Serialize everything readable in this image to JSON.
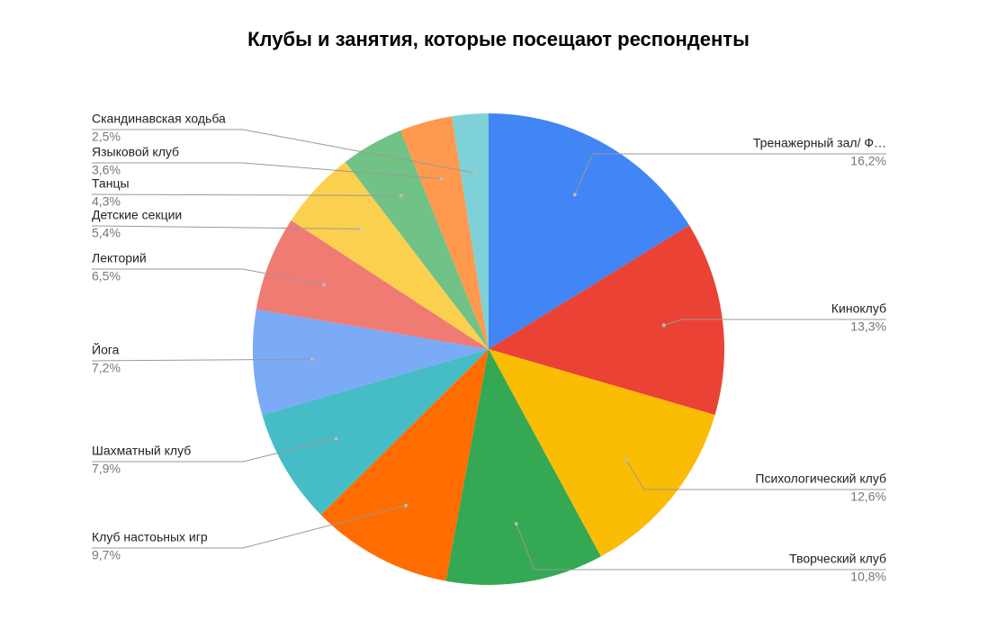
{
  "chart_data": {
    "type": "pie",
    "title": "Клубы и занятия, которые посещают респонденты",
    "categories": [
      "Тренажерный зал/ Ф…",
      "Киноклуб",
      "Психологический клуб",
      "Творческий клуб",
      "Клуб настоьных игр",
      "Шахматный клуб",
      "Йога",
      "Лекторий",
      "Детские секции",
      "Танцы",
      "Языковой клуб",
      "Скандинавская ходьба"
    ],
    "values": [
      16.2,
      13.3,
      12.6,
      10.8,
      9.7,
      7.9,
      7.2,
      6.5,
      5.4,
      4.3,
      3.6,
      2.5
    ],
    "value_labels": [
      "16,2%",
      "13,3%",
      "12,6%",
      "10,8%",
      "9,7%",
      "7,9%",
      "7,2%",
      "6,5%",
      "5,4%",
      "4,3%",
      "3,6%",
      "2,5%"
    ],
    "colors": [
      "#4285f4",
      "#ea4335",
      "#fbbc04",
      "#34a853",
      "#ff6d01",
      "#46bdc6",
      "#7baaf7",
      "#f07b72",
      "#fcd04f",
      "#71c287",
      "#ff994d",
      "#7ed1d7"
    ]
  }
}
